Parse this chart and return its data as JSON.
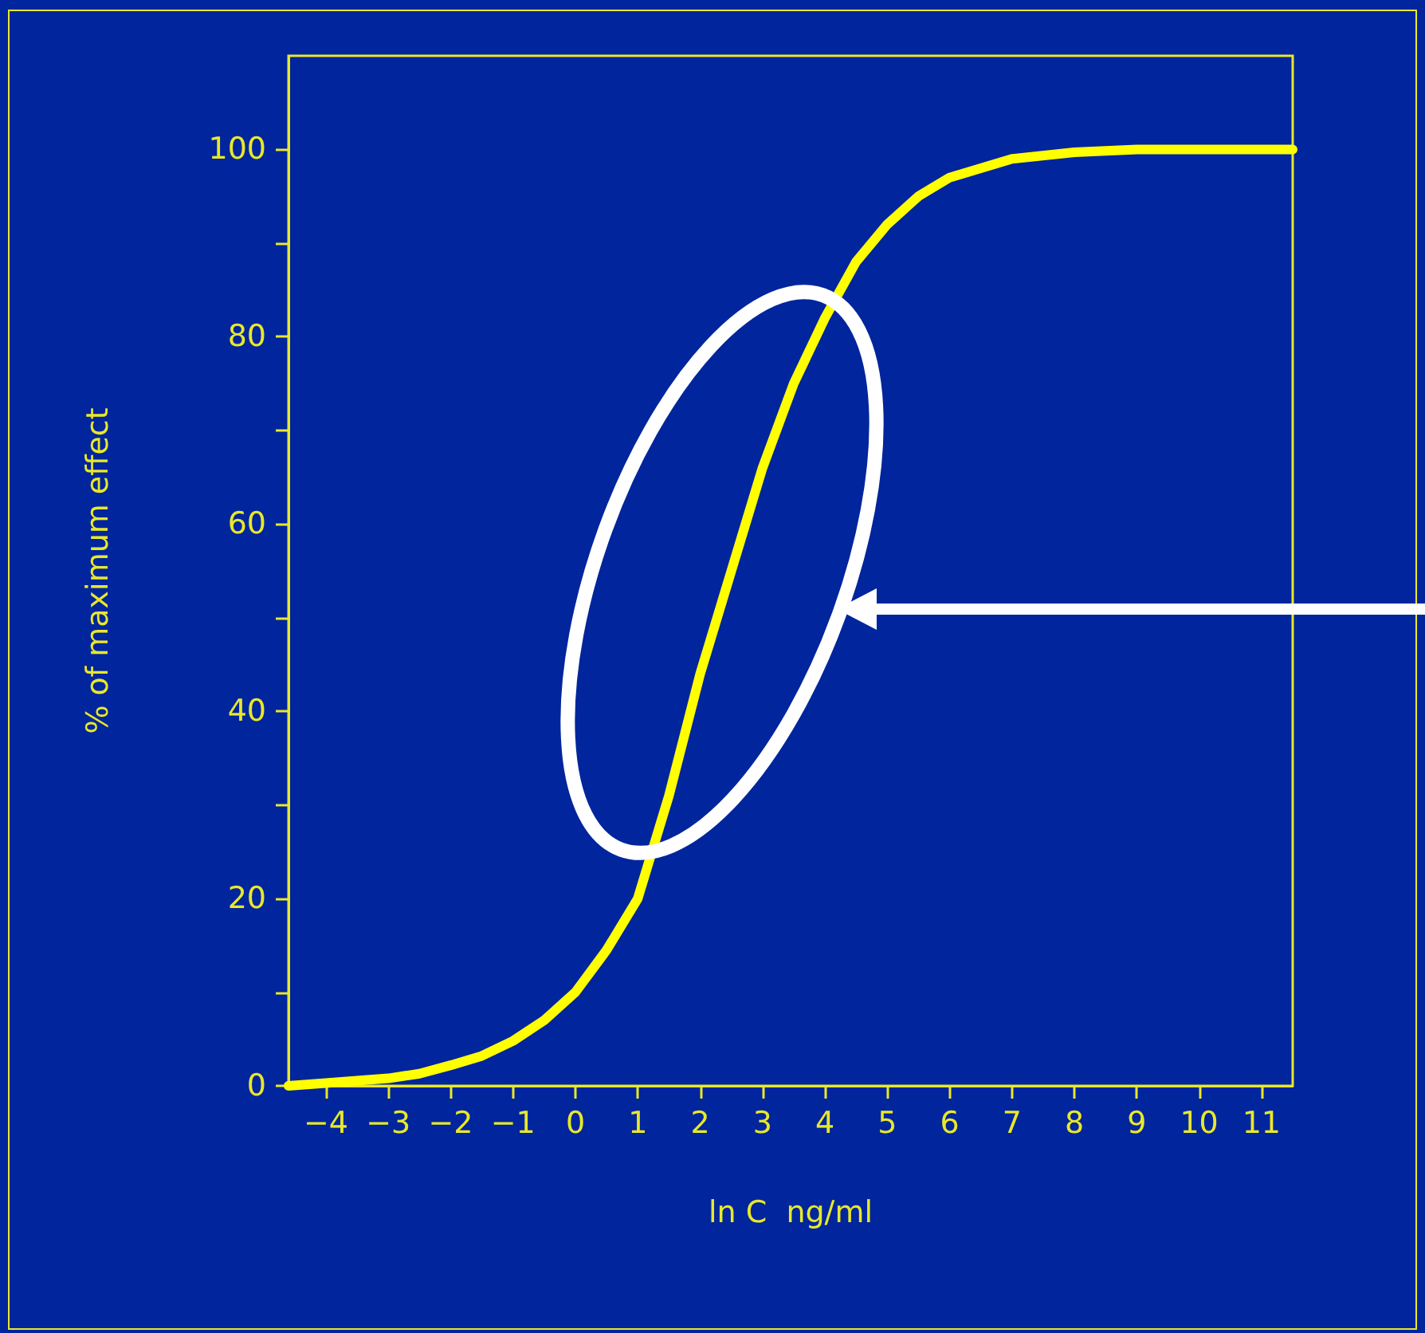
{
  "chart_data": {
    "type": "line",
    "xlabel": "ln C  ng/ml",
    "ylabel": "% of maximum effect",
    "xlim": [
      -4.6,
      11.5
    ],
    "xticks": [
      -4,
      -3,
      -2,
      -1,
      0,
      1,
      2,
      3,
      4,
      5,
      6,
      7,
      8,
      9,
      10,
      11
    ],
    "ylim": [
      0,
      110
    ],
    "yticks": [
      0,
      {
        "value": 10,
        "label": null
      },
      20,
      {
        "value": 30,
        "label": null
      },
      40,
      {
        "value": 50,
        "label": null
      },
      60,
      {
        "value": 70,
        "label": null
      },
      80,
      {
        "value": 90,
        "label": null
      },
      100
    ],
    "grid": false,
    "marker": "none",
    "line_style": "solid",
    "series": [
      {
        "color": "#ffff00",
        "x": [
          -4.6,
          -4,
          -3,
          -2.5,
          -2,
          -1.5,
          -1,
          -0.5,
          0,
          0.5,
          1,
          1.5,
          2,
          2.5,
          3,
          3.5,
          4,
          4.5,
          5,
          5.5,
          6,
          7,
          8,
          9,
          10,
          11.5
        ],
        "values": [
          0,
          0.3,
          0.8,
          1.3,
          2.2,
          3.2,
          4.8,
          7,
          10,
          14.5,
          20,
          31,
          44,
          55,
          66,
          75,
          82,
          88,
          92,
          95,
          97,
          99,
          99.7,
          100,
          100,
          100
        ]
      }
    ]
  }
}
